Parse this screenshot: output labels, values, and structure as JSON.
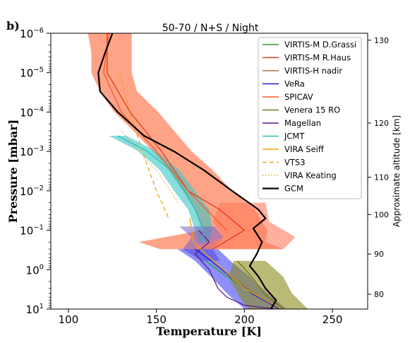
{
  "panel_label": "b)",
  "chart_data": {
    "type": "line",
    "title": "50-70 / N+S / Night",
    "xlabel": "Temperature [K]",
    "ylabel": "Pressure [mbar]",
    "y2label": "Approximate altitude [km]",
    "xlim": [
      90,
      270
    ],
    "ylim": [
      10,
      1e-06
    ],
    "yscale": "log",
    "grid": false,
    "legend_position": "top-right",
    "x_ticks": [
      100,
      150,
      200,
      250
    ],
    "y_ticks": [
      1e-06,
      1e-05,
      0.0001,
      0.001,
      0.01,
      0.1,
      1,
      10
    ],
    "y_tick_labels": [
      {
        "base": "10",
        "exp": "−6"
      },
      {
        "base": "10",
        "exp": "−5"
      },
      {
        "base": "10",
        "exp": "−4"
      },
      {
        "base": "10",
        "exp": "−3"
      },
      {
        "base": "10",
        "exp": "−2"
      },
      {
        "base": "10",
        "exp": "−1"
      },
      {
        "base": "10",
        "exp": "0"
      },
      {
        "base": "10",
        "exp": "1"
      }
    ],
    "altitude_ticks": [
      {
        "label": "130",
        "pressure": 1.5e-06
      },
      {
        "label": "120",
        "pressure": 0.00019
      },
      {
        "label": "110",
        "pressure": 0.0045
      },
      {
        "label": "100",
        "pressure": 0.04
      },
      {
        "label": "90",
        "pressure": 0.4
      },
      {
        "label": "80",
        "pressure": 4.2
      }
    ],
    "bands": [
      {
        "name": "SPICAV",
        "color": "#ff5722",
        "opacity": 0.55,
        "p": [
          1e-06,
          3e-06,
          1e-05,
          3e-05,
          0.0001,
          0.0003,
          0.001,
          0.003,
          0.01,
          0.03,
          0.1,
          0.2,
          0.3
        ],
        "tmin": [
          111,
          113,
          113,
          118,
          126,
          137,
          148,
          157,
          165,
          172,
          176,
          140,
          152
        ],
        "tmax": [
          136,
          136,
          136,
          139,
          151,
          160,
          170,
          182,
          193,
          206,
          213,
          212,
          222
        ]
      },
      {
        "name": "JCMT",
        "color": "#39c6c6",
        "opacity": 0.6,
        "p": [
          0.0004,
          0.001,
          0.003,
          0.01,
          0.03,
          0.1,
          0.2
        ],
        "tmin": [
          123,
          140,
          152,
          160,
          168,
          172,
          174
        ],
        "tmax": [
          133,
          150,
          163,
          172,
          180,
          182,
          180
        ]
      },
      {
        "name": "Magellan",
        "color": "#7b5ec6",
        "opacity": 0.55,
        "p": [
          0.08,
          0.15,
          0.3,
          0.6
        ],
        "tmin": [
          163,
          170,
          165,
          176
        ],
        "tmax": [
          183,
          188,
          182,
          186
        ]
      },
      {
        "name": "VeRa",
        "color": "#2f35f2",
        "opacity": 0.55,
        "p": [
          0.3,
          0.6,
          1.5,
          4,
          10
        ],
        "tmin": [
          162,
          172,
          181,
          190,
          200
        ],
        "tmax": [
          185,
          192,
          203,
          213,
          224
        ]
      },
      {
        "name": "Venera 15 RO",
        "color": "#8a8c19",
        "opacity": 0.6,
        "p": [
          0.6,
          1.5,
          4,
          10
        ],
        "tmin": [
          194,
          191,
          196,
          202
        ],
        "tmax": [
          212,
          222,
          227,
          236
        ]
      },
      {
        "name": "VIRTIS-M R.Haus",
        "color": "#ff7a5c",
        "opacity": 0.6,
        "p": [
          0.02,
          0.06,
          0.15,
          0.3
        ],
        "tmin": [
          186,
          182,
          188,
          170
        ],
        "tmax": [
          212,
          214,
          229,
          222
        ]
      }
    ],
    "series": [
      {
        "name": "VIRTIS-M D.Grassi",
        "color": "#2e9e2e",
        "dash": "",
        "p": [
          0.6,
          1.5,
          4,
          10
        ],
        "t": [
          178,
          190,
          205,
          221
        ]
      },
      {
        "name": "VIRTIS-M R.Haus",
        "color": "#e53a17",
        "dash": "",
        "p": [
          1e-06,
          1e-05,
          0.0001,
          0.001,
          0.01,
          0.03,
          0.1,
          0.3
        ],
        "t": [
          122,
          122,
          135,
          153,
          168,
          186,
          200,
          182
        ]
      },
      {
        "name": "VIRTIS-H nadir",
        "color": "#9c7a4f",
        "dash": "",
        "p": [
          0.6,
          1.5,
          4,
          10
        ],
        "t": [
          181,
          193,
          206,
          220
        ]
      },
      {
        "name": "VeRa",
        "color": "#1a1ad6",
        "dash": "",
        "p": [
          0.3,
          0.6,
          1.5,
          4,
          10
        ],
        "t": [
          172,
          181,
          192,
          204,
          220
        ]
      },
      {
        "name": "SPICAV",
        "color": "#ff5722",
        "dash": "",
        "p": [
          1e-06,
          1e-05,
          0.0001,
          0.001,
          0.01,
          0.1
        ],
        "t": [
          123,
          120,
          130,
          150,
          168,
          190
        ]
      },
      {
        "name": "Venera 15 RO",
        "color": "#6d7b1a",
        "dash": "",
        "p": [
          0.6,
          1.5,
          4,
          10
        ],
        "t": [
          196,
          204,
          211,
          222
        ]
      },
      {
        "name": "Magellan",
        "color": "#5b1a8a",
        "dash": "",
        "p": [
          0.1,
          0.2,
          0.4,
          1,
          3,
          5,
          8,
          10
        ],
        "t": [
          174,
          180,
          172,
          180,
          185,
          190,
          200,
          218
        ]
      },
      {
        "name": "JCMT",
        "color": "#23bfc2",
        "dash": "",
        "p": [
          0.0004,
          0.001,
          0.003,
          0.01,
          0.03,
          0.1,
          0.2
        ],
        "t": [
          128,
          145,
          158,
          166,
          172,
          177,
          176
        ]
      },
      {
        "name": "VIRA Seiff",
        "color": "#f0a30a",
        "dash": "",
        "p": [
          0.05,
          0.2,
          0.4,
          1,
          3,
          10
        ],
        "t": [
          169,
          171,
          178,
          188,
          200,
          221
        ]
      },
      {
        "name": "VTS3",
        "color": "#f0a30a",
        "dash": "6,4",
        "p": [
          1e-05,
          0.0001,
          0.001,
          0.01,
          0.05
        ],
        "t": [
          129,
          135,
          142,
          150,
          157
        ]
      },
      {
        "name": "VIRA Keating",
        "color": "#e8a73a",
        "dash": "1.5,2.5",
        "p": [
          0.0003,
          0.001,
          0.003,
          0.01,
          0.02
        ],
        "t": [
          130,
          140,
          150,
          158,
          162
        ]
      },
      {
        "name": "GCM",
        "color": "#000000",
        "dash": "",
        "width": 2.2,
        "p": [
          1e-06,
          3e-06,
          1e-05,
          3e-05,
          0.0001,
          0.0004,
          0.001,
          0.003,
          0.01,
          0.03,
          0.05,
          0.09,
          0.2,
          0.4,
          0.8,
          1.5,
          3,
          6,
          10
        ],
        "t": [
          125,
          121,
          117,
          118,
          128,
          143,
          160,
          177,
          193,
          208,
          212,
          205,
          210,
          207,
          203,
          208,
          212,
          218,
          215
        ]
      }
    ]
  }
}
